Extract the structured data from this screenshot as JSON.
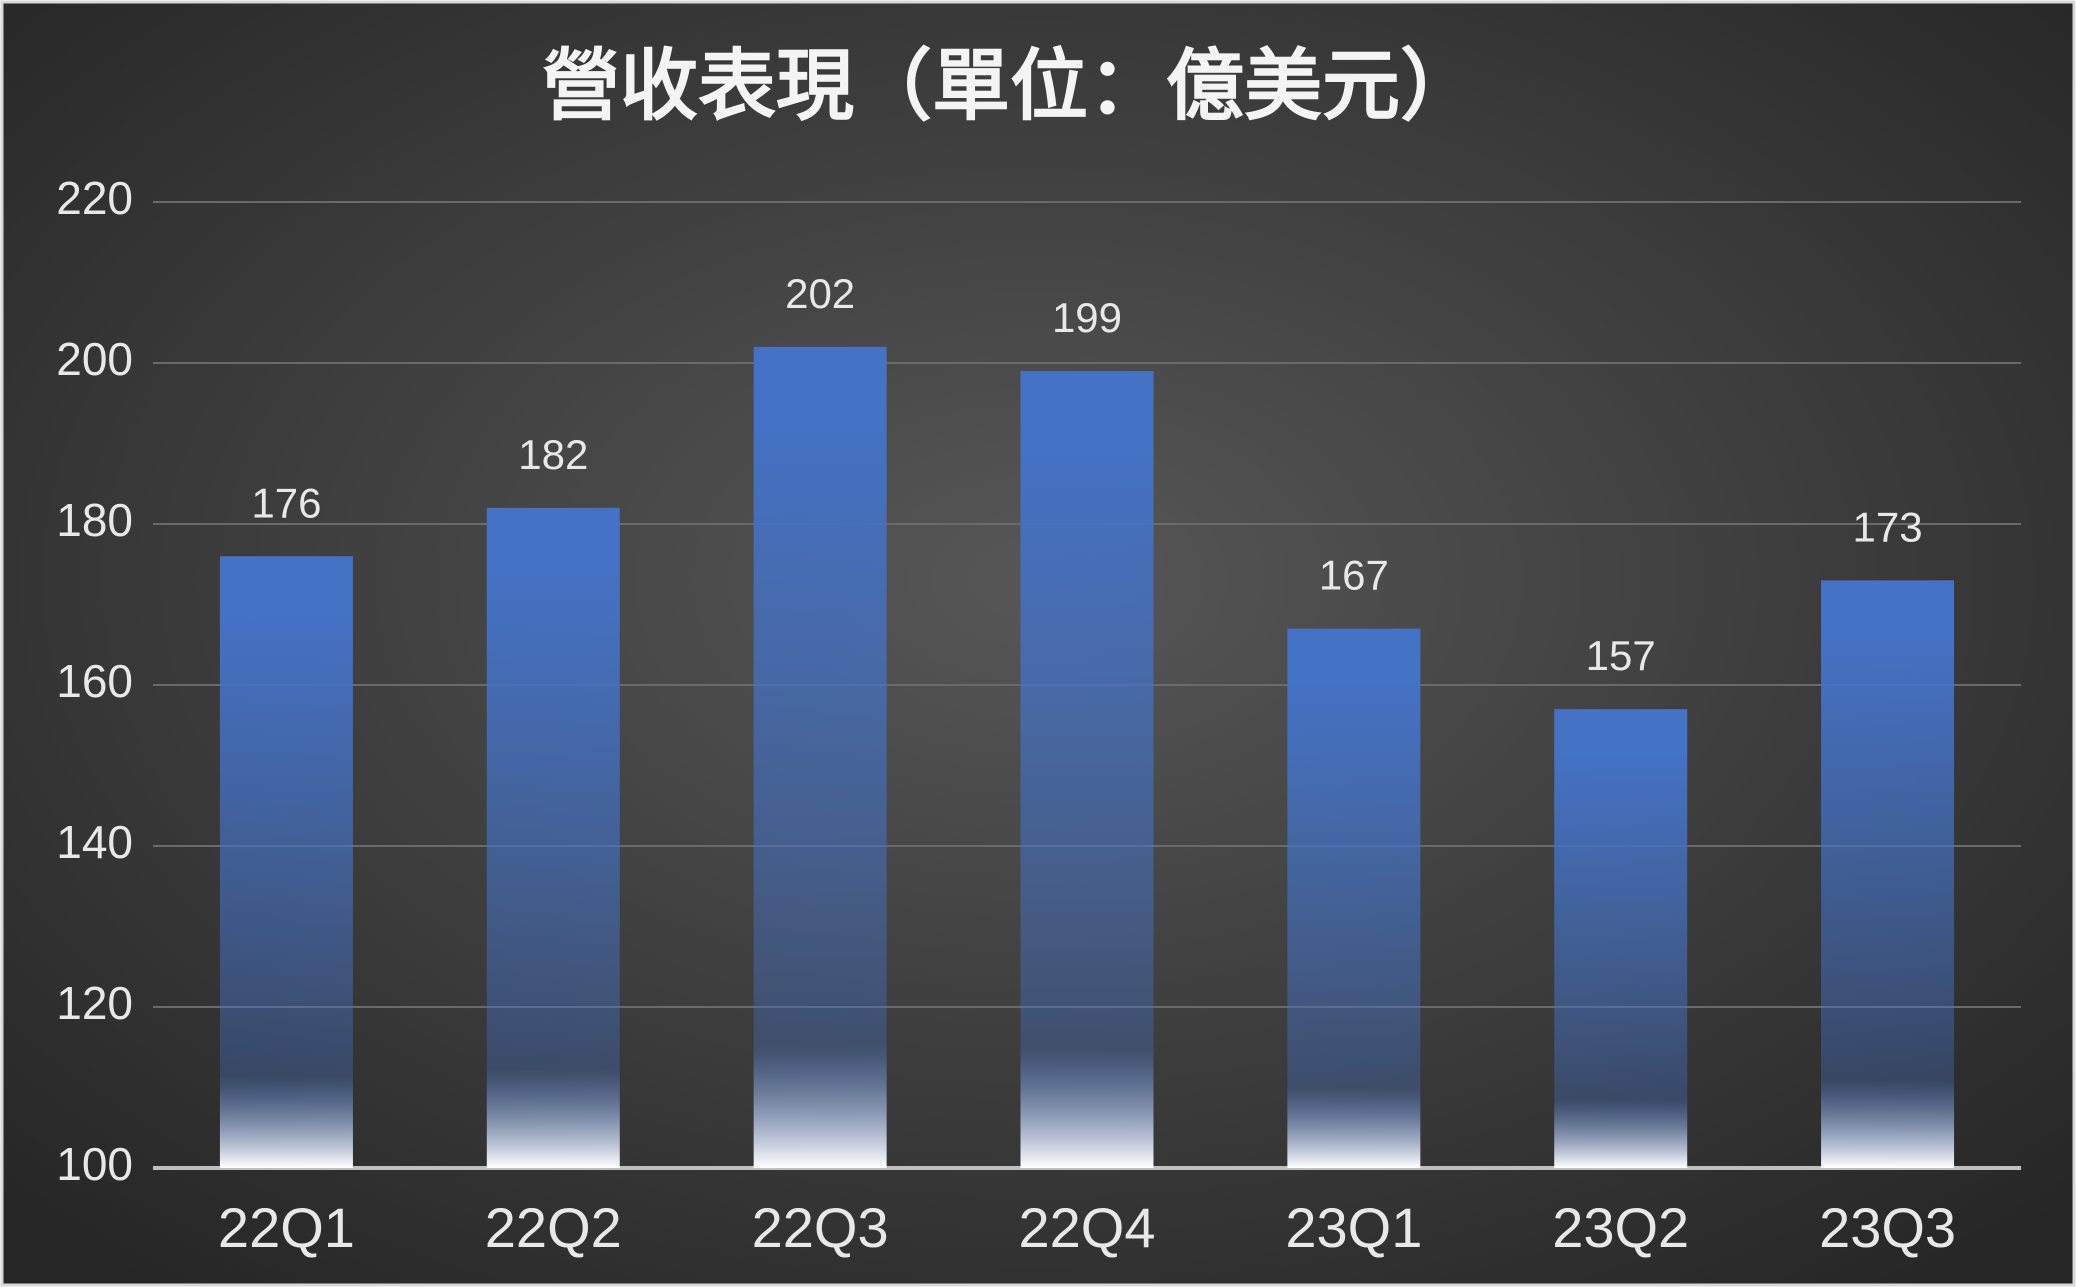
{
  "chart_data": {
    "type": "bar",
    "title": "營收表現（單位：億美元）",
    "categories": [
      "22Q1",
      "22Q2",
      "22Q3",
      "22Q4",
      "23Q1",
      "23Q2",
      "23Q3"
    ],
    "values": [
      176,
      182,
      202,
      199,
      167,
      157,
      173
    ],
    "color": "#4472c4",
    "ylim": [
      100,
      220
    ],
    "yticks": [
      100,
      120,
      140,
      160,
      180,
      200,
      220
    ],
    "grid": true
  }
}
